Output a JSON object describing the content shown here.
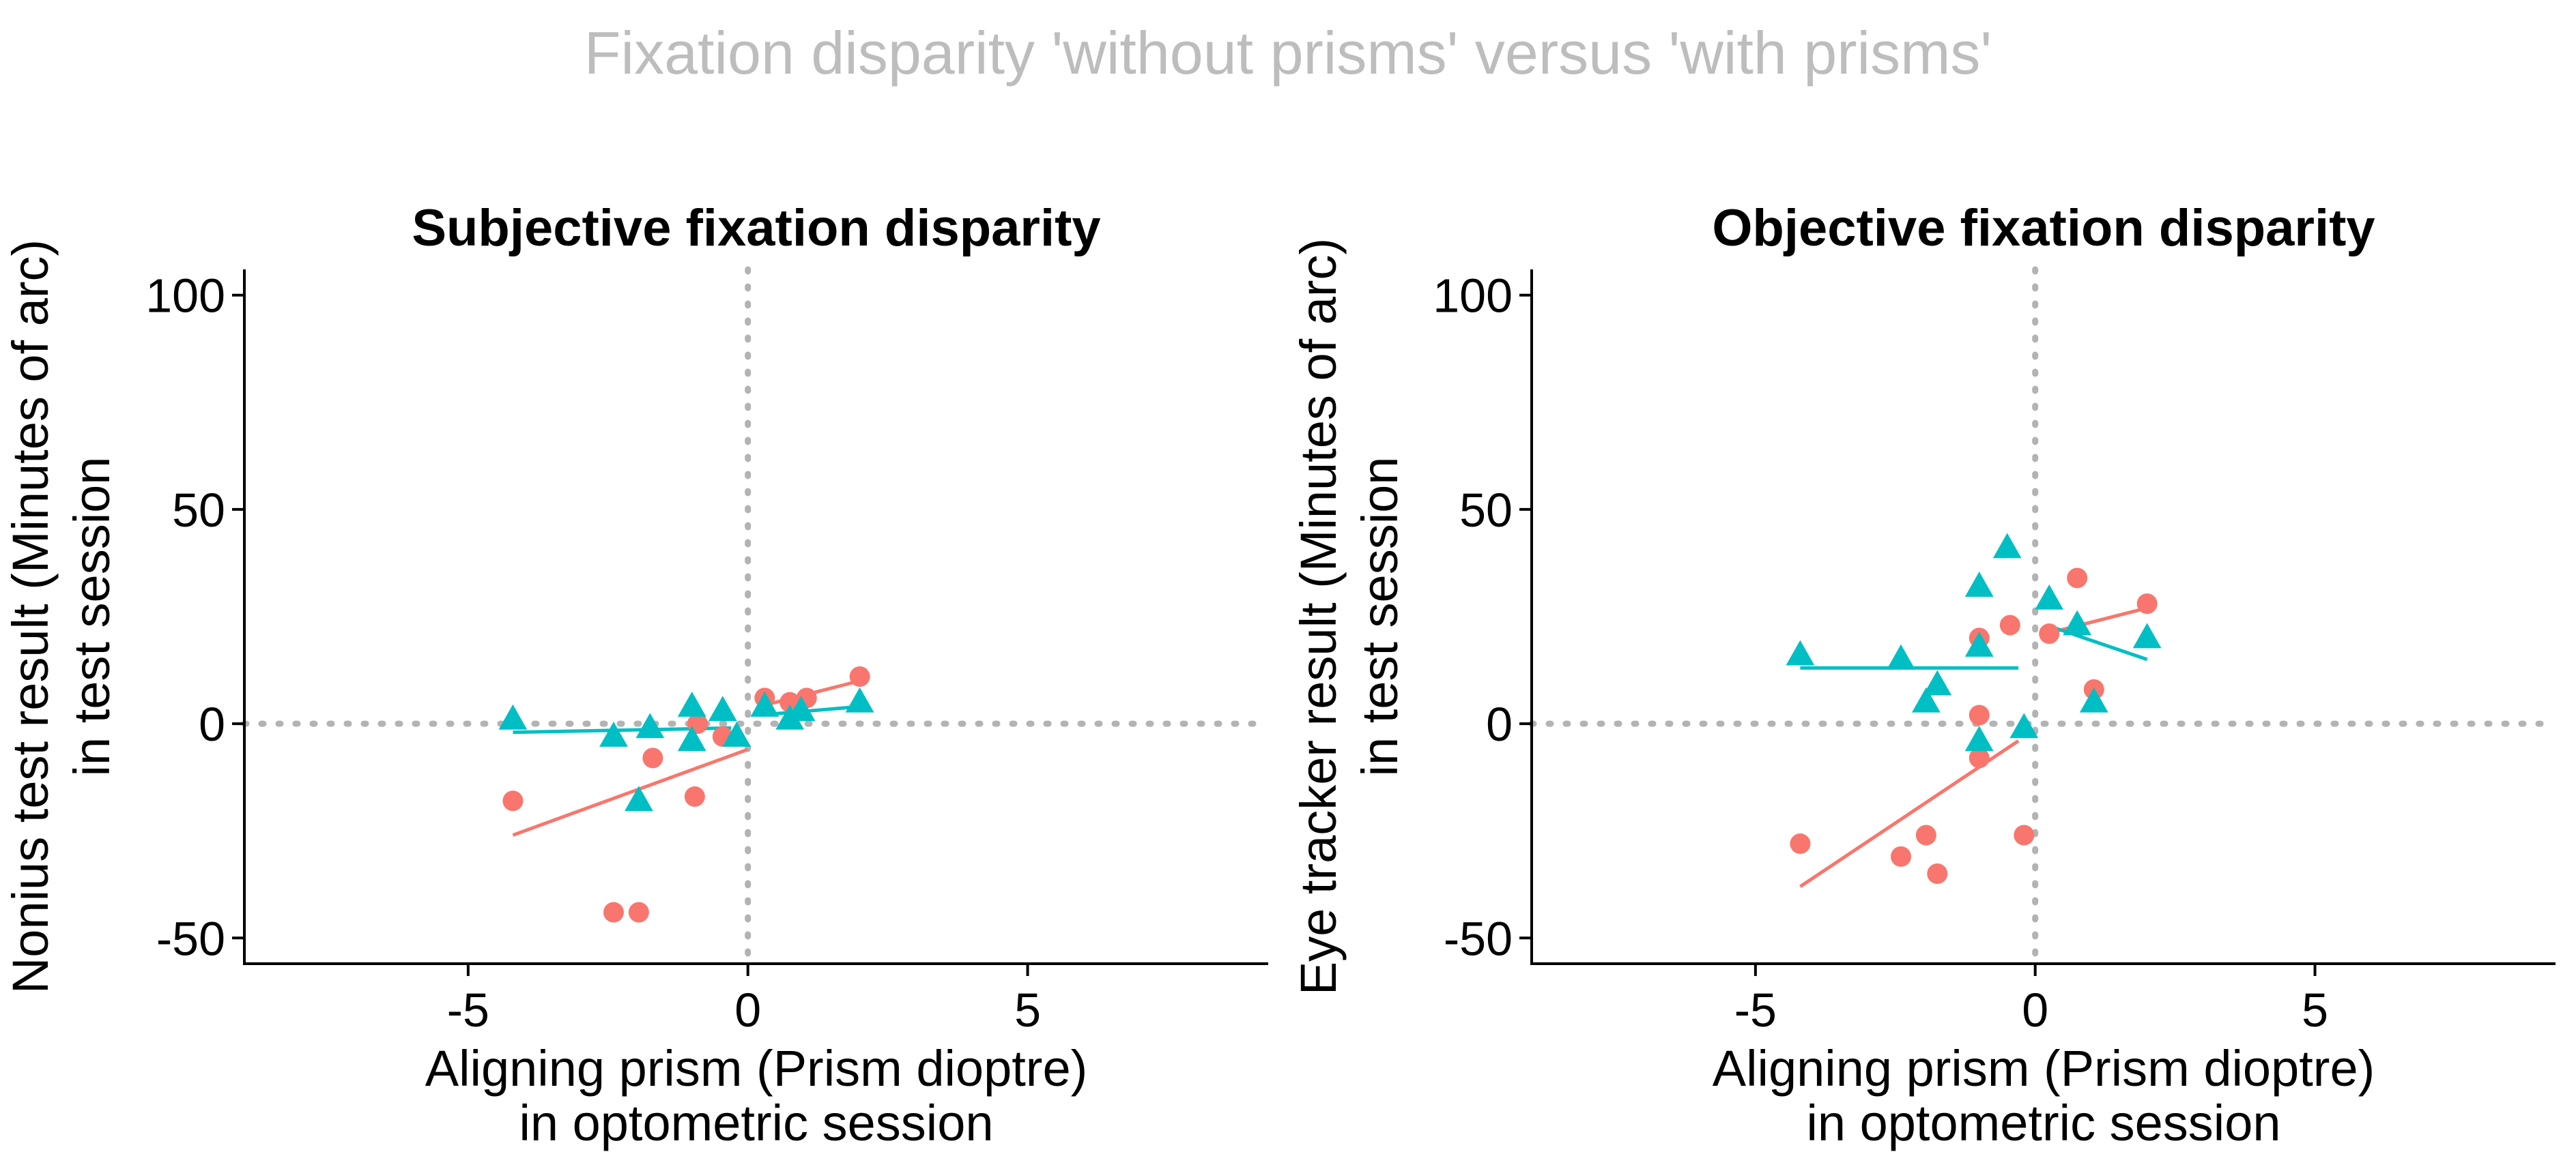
{
  "suptitle": "Fixation disparity 'without prisms' versus 'with prisms'",
  "colors": {
    "suptitle": "#bdbdbd",
    "without_prisms": "#F8766D",
    "with_prisms": "#00BFC4",
    "axis": "#000000",
    "reference_line": "#b3b3b3"
  },
  "chart_data": [
    {
      "type": "scatter",
      "title": "Subjective fixation disparity",
      "xlabel": [
        "Aligning prism (Prism dioptre)",
        "in optometric session"
      ],
      "ylabel": [
        "Nonius test result (Minutes of arc)",
        "in test session"
      ],
      "xlim": [
        -9.0,
        9.3
      ],
      "ylim": [
        -56,
        106
      ],
      "xticks": [
        -5,
        0,
        5
      ],
      "xtick_labels": [
        "-5",
        "0",
        "5"
      ],
      "yticks": [
        -50,
        0,
        50,
        100
      ],
      "ytick_labels": [
        "-50",
        "0",
        "50",
        "100"
      ],
      "grid": false,
      "legend": "none",
      "reference_lines": {
        "x": 0,
        "y": 0
      },
      "series": [
        {
          "marker": "circle",
          "color": "#F8766D",
          "points": [
            [
              -4.2,
              -18
            ],
            [
              -1.7,
              -8
            ],
            [
              -2.4,
              -44
            ],
            [
              -1.95,
              -44
            ],
            [
              -0.95,
              -17
            ],
            [
              -0.9,
              0
            ],
            [
              -0.45,
              -3
            ],
            [
              0.3,
              6
            ],
            [
              0.75,
              5
            ],
            [
              1.05,
              6
            ],
            [
              2.0,
              11
            ]
          ],
          "fit": [
            [
              -4.2,
              -26
            ],
            [
              0.0,
              -6
            ]
          ]
        },
        {
          "marker": "triangle",
          "color": "#00BFC4",
          "points": [
            [
              -4.2,
              1
            ],
            [
              -2.4,
              -3
            ],
            [
              -1.75,
              -1
            ],
            [
              -1.95,
              -18
            ],
            [
              -1.0,
              4
            ],
            [
              -1.0,
              -4
            ],
            [
              -0.45,
              3
            ],
            [
              -0.2,
              -3
            ],
            [
              0.3,
              4
            ],
            [
              0.75,
              1
            ],
            [
              0.95,
              3
            ],
            [
              2.0,
              5
            ]
          ],
          "fit": [
            [
              -4.2,
              -2
            ],
            [
              -0.3,
              -1
            ]
          ]
        },
        {
          "marker": "none",
          "color": "#00BFC4",
          "points": [],
          "fit": [
            [
              0.2,
              2
            ],
            [
              2.0,
              4
            ]
          ]
        },
        {
          "marker": "none",
          "color": "#F8766D",
          "points": [],
          "fit": [
            [
              0.2,
              4
            ],
            [
              2.0,
              10
            ]
          ]
        }
      ]
    },
    {
      "type": "scatter",
      "title": "Objective fixation disparity",
      "xlabel": [
        "Aligning prism (Prism dioptre)",
        "in optometric session"
      ],
      "ylabel": [
        "Eye tracker result (Minutes of arc)",
        "in test session"
      ],
      "xlim": [
        -9.0,
        9.3
      ],
      "ylim": [
        -56,
        106
      ],
      "xticks": [
        -5,
        0,
        5
      ],
      "xtick_labels": [
        "-5",
        "0",
        "5"
      ],
      "yticks": [
        -50,
        0,
        50,
        100
      ],
      "ytick_labels": [
        "-50",
        "0",
        "50",
        "100"
      ],
      "grid": false,
      "legend": "none",
      "reference_lines": {
        "x": 0,
        "y": 0
      },
      "series": [
        {
          "marker": "circle",
          "color": "#F8766D",
          "points": [
            [
              -4.2,
              -28
            ],
            [
              -2.4,
              -31
            ],
            [
              -1.95,
              -26
            ],
            [
              -1.75,
              -35
            ],
            [
              -1.0,
              20
            ],
            [
              -1.0,
              2
            ],
            [
              -1.0,
              -8
            ],
            [
              -0.45,
              23
            ],
            [
              -0.2,
              -26
            ],
            [
              0.25,
              21
            ],
            [
              0.75,
              34
            ],
            [
              1.05,
              8
            ],
            [
              2.0,
              28
            ]
          ],
          "fit": [
            [
              -4.2,
              -38
            ],
            [
              -0.3,
              -4
            ]
          ]
        },
        {
          "marker": "triangle",
          "color": "#00BFC4",
          "points": [
            [
              -4.2,
              16
            ],
            [
              -2.4,
              15
            ],
            [
              -1.75,
              9
            ],
            [
              -1.95,
              5
            ],
            [
              -1.0,
              32
            ],
            [
              -1.0,
              18
            ],
            [
              -1.0,
              -4
            ],
            [
              -0.5,
              41
            ],
            [
              -0.2,
              -1
            ],
            [
              0.25,
              29
            ],
            [
              0.75,
              23
            ],
            [
              1.05,
              5
            ],
            [
              2.0,
              20
            ]
          ],
          "fit": [
            [
              -4.2,
              13
            ],
            [
              -0.3,
              13
            ]
          ]
        },
        {
          "marker": "none",
          "color": "#F8766D",
          "points": [],
          "fit": [
            [
              0.2,
              21
            ],
            [
              2.0,
              27
            ]
          ]
        },
        {
          "marker": "none",
          "color": "#00BFC4",
          "points": [],
          "fit": [
            [
              0.2,
              23
            ],
            [
              2.0,
              15
            ]
          ]
        }
      ]
    }
  ]
}
